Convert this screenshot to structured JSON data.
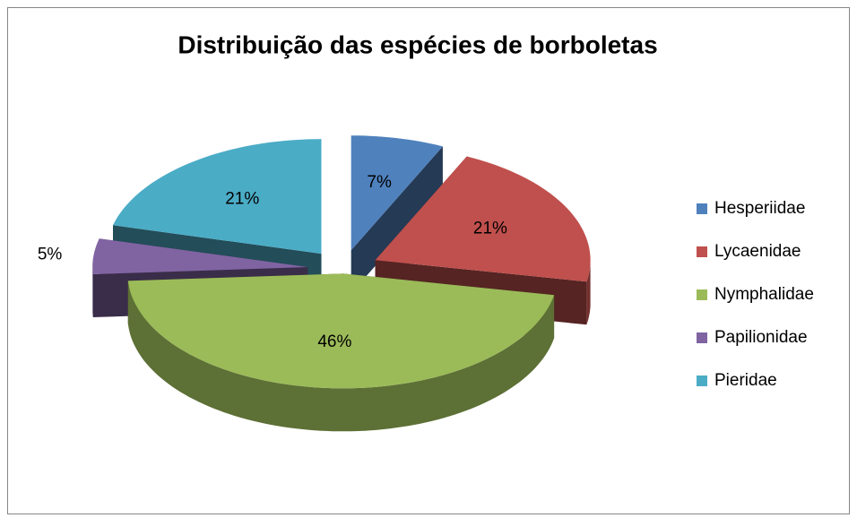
{
  "chart_data": {
    "type": "pie",
    "title": "Distribuição das espécies de borboletas",
    "categories": [
      "Hesperiidae",
      "Lycaenidae",
      "Nymphalidae",
      "Papilionidae",
      "Pieridae"
    ],
    "values": [
      7,
      21,
      46,
      5,
      21
    ],
    "value_labels": [
      "7%",
      "21%",
      "46%",
      "5%",
      "21%"
    ],
    "colors": [
      "#4f81bd",
      "#c0504d",
      "#9bbb59",
      "#8064a2",
      "#4bacc6"
    ],
    "legend": "right"
  }
}
